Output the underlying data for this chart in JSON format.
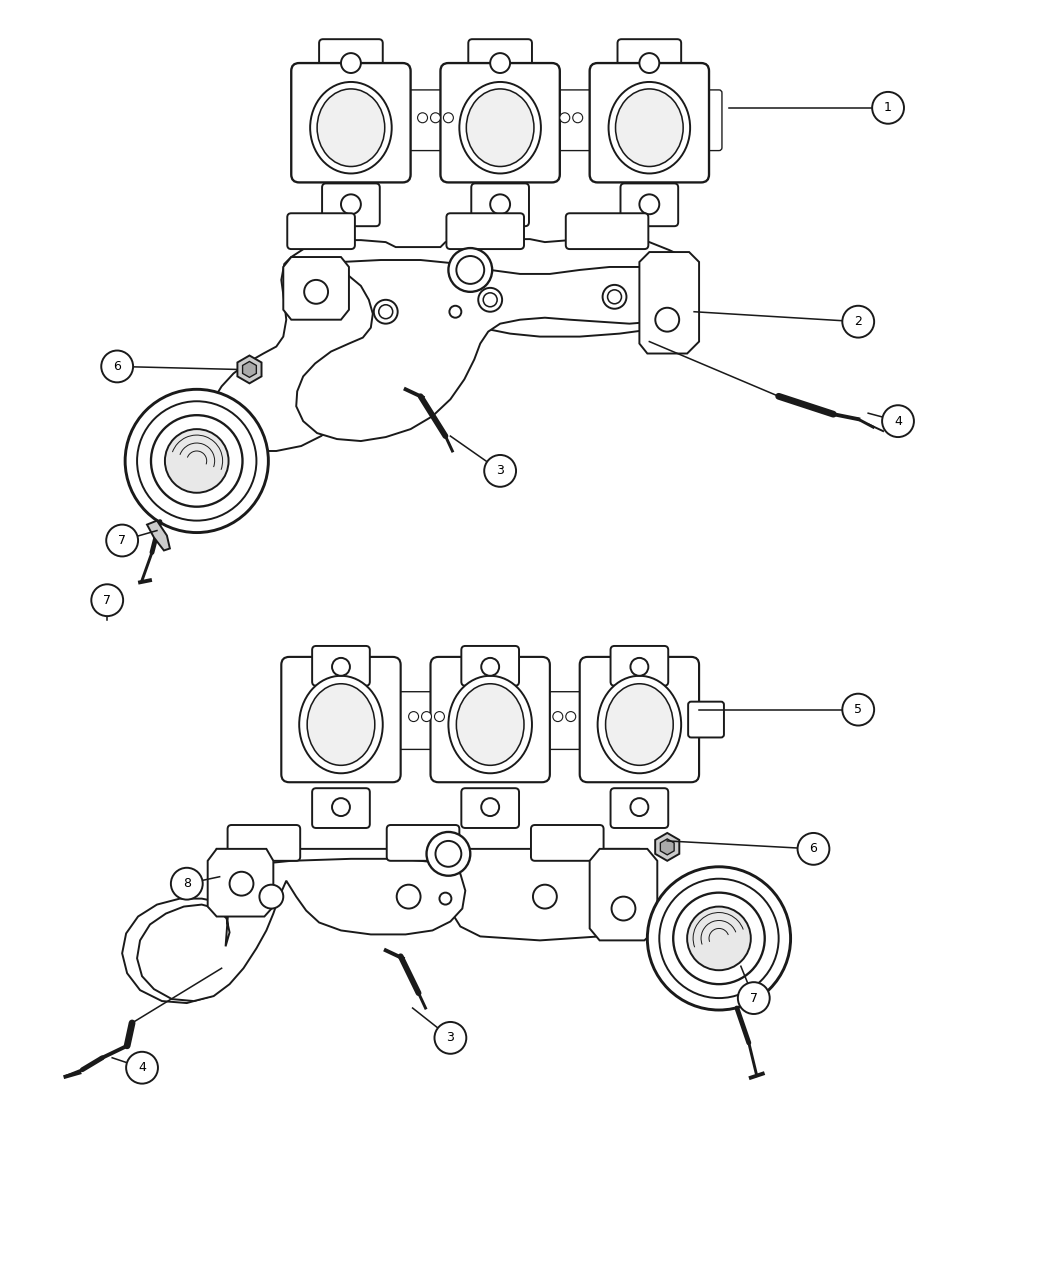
{
  "bg_color": "#ffffff",
  "line_color": "#1a1a1a",
  "lw": 1.4,
  "fig_width": 10.5,
  "fig_height": 12.75,
  "dpi": 100
}
